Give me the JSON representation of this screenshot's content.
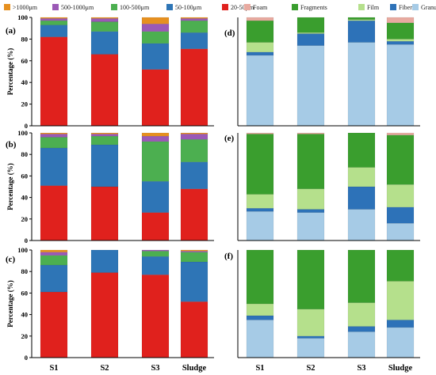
{
  "figure": {
    "left_legend": [
      {
        "label": ">1000μm",
        "color": "#e69020"
      },
      {
        "label": "500-1000μm",
        "color": "#9b59b6"
      },
      {
        "label": "100-500μm",
        "color": "#4caf50"
      },
      {
        "label": "50-100μm",
        "color": "#2e75b6"
      },
      {
        "label": "20-50μm",
        "color": "#e0211d"
      }
    ],
    "right_legend": [
      {
        "label": "Foam",
        "color": "#e8aaa0"
      },
      {
        "label": "Fragments",
        "color": "#3a9e2e"
      },
      {
        "label": "Film",
        "color": "#b5e08c"
      },
      {
        "label": "Fibers",
        "color": "#2d72b8"
      },
      {
        "label": "Granules",
        "color": "#a6cbe6"
      }
    ]
  },
  "chart_data": [
    {
      "type": "bar",
      "stacked": true,
      "panel_label": "(a)",
      "ylabel": "Percentage (%)",
      "ylim": [
        0,
        100
      ],
      "yticks": [
        0,
        20,
        40,
        60,
        80,
        100
      ],
      "categories": [
        "S1",
        "S2",
        "S3",
        "Sludge"
      ],
      "show_xticks": false,
      "series": [
        {
          "name": "20-50μm",
          "color": "#e0211d",
          "values": [
            82,
            66,
            52,
            71
          ]
        },
        {
          "name": "50-100μm",
          "color": "#2e75b6",
          "values": [
            11,
            21,
            24,
            15
          ]
        },
        {
          "name": "100-500μm",
          "color": "#4caf50",
          "values": [
            4,
            9,
            11,
            11
          ]
        },
        {
          "name": "500-1000μm",
          "color": "#9b59b6",
          "values": [
            2,
            3,
            7,
            2
          ]
        },
        {
          "name": ">1000μm",
          "color": "#e69020",
          "values": [
            1,
            1,
            6,
            1
          ]
        }
      ]
    },
    {
      "type": "bar",
      "stacked": true,
      "panel_label": "(b)",
      "ylabel": "Percentage (%)",
      "ylim": [
        0,
        100
      ],
      "yticks": [
        0,
        20,
        40,
        60,
        80,
        100
      ],
      "categories": [
        "S1",
        "S2",
        "S3",
        "Sludge"
      ],
      "show_xticks": false,
      "series": [
        {
          "name": "20-50μm",
          "color": "#e0211d",
          "values": [
            51,
            50,
            26,
            48
          ]
        },
        {
          "name": "50-100μm",
          "color": "#2e75b6",
          "values": [
            35,
            39,
            29,
            25
          ]
        },
        {
          "name": "100-500μm",
          "color": "#4caf50",
          "values": [
            10,
            8,
            37,
            21
          ]
        },
        {
          "name": "500-1000μm",
          "color": "#9b59b6",
          "values": [
            3,
            2,
            5,
            5
          ]
        },
        {
          "name": ">1000μm",
          "color": "#e69020",
          "values": [
            1,
            1,
            3,
            1
          ]
        }
      ]
    },
    {
      "type": "bar",
      "stacked": true,
      "panel_label": "(c)",
      "ylabel": "Percentage (%)",
      "ylim": [
        0,
        100
      ],
      "yticks": [
        0,
        20,
        40,
        60,
        80,
        100
      ],
      "categories": [
        "S1",
        "S2",
        "S3",
        "Sludge"
      ],
      "show_xticks": true,
      "series": [
        {
          "name": "20-50μm",
          "color": "#e0211d",
          "values": [
            61,
            79,
            77,
            52
          ]
        },
        {
          "name": "50-100μm",
          "color": "#2e75b6",
          "values": [
            25,
            21,
            17,
            37
          ]
        },
        {
          "name": "100-500μm",
          "color": "#4caf50",
          "values": [
            9,
            0,
            5,
            9
          ]
        },
        {
          "name": "500-1000μm",
          "color": "#9b59b6",
          "values": [
            3,
            0,
            1,
            1
          ]
        },
        {
          "name": ">1000μm",
          "color": "#e69020",
          "values": [
            2,
            0,
            0,
            1
          ]
        }
      ]
    },
    {
      "type": "bar",
      "stacked": true,
      "panel_label": "(d)",
      "ylim": [
        0,
        100
      ],
      "categories": [
        "S1",
        "S2",
        "S3",
        "Sludge"
      ],
      "show_xticks": false,
      "series": [
        {
          "name": "Granules",
          "color": "#a6cbe6",
          "values": [
            65,
            74,
            77,
            75
          ]
        },
        {
          "name": "Fibers",
          "color": "#2d72b8",
          "values": [
            3,
            11,
            20,
            3
          ]
        },
        {
          "name": "Film",
          "color": "#b5e08c",
          "values": [
            9,
            1,
            1,
            2
          ]
        },
        {
          "name": "Fragments",
          "color": "#3a9e2e",
          "values": [
            20,
            14,
            2,
            15
          ]
        },
        {
          "name": "Foam",
          "color": "#e8aaa0",
          "values": [
            3,
            0,
            0,
            5
          ]
        }
      ]
    },
    {
      "type": "bar",
      "stacked": true,
      "panel_label": "(e)",
      "ylim": [
        0,
        100
      ],
      "categories": [
        "S1",
        "S2",
        "S3",
        "Sludge"
      ],
      "show_xticks": false,
      "series": [
        {
          "name": "Granules",
          "color": "#a6cbe6",
          "values": [
            27,
            26,
            29,
            16
          ]
        },
        {
          "name": "Fibers",
          "color": "#2d72b8",
          "values": [
            3,
            3,
            21,
            15
          ]
        },
        {
          "name": "Film",
          "color": "#b5e08c",
          "values": [
            13,
            19,
            18,
            21
          ]
        },
        {
          "name": "Fragments",
          "color": "#3a9e2e",
          "values": [
            56,
            51,
            32,
            46
          ]
        },
        {
          "name": "Foam",
          "color": "#e8aaa0",
          "values": [
            1,
            1,
            0,
            2
          ]
        }
      ]
    },
    {
      "type": "bar",
      "stacked": true,
      "panel_label": "(f)",
      "ylim": [
        0,
        100
      ],
      "categories": [
        "S1",
        "S2",
        "S3",
        "Sludge"
      ],
      "show_xticks": true,
      "series": [
        {
          "name": "Granules",
          "color": "#a6cbe6",
          "values": [
            35,
            18,
            24,
            28
          ]
        },
        {
          "name": "Fibers",
          "color": "#2d72b8",
          "values": [
            4,
            2,
            5,
            7
          ]
        },
        {
          "name": "Film",
          "color": "#b5e08c",
          "values": [
            11,
            25,
            22,
            36
          ]
        },
        {
          "name": "Fragments",
          "color": "#3a9e2e",
          "values": [
            50,
            55,
            49,
            29
          ]
        },
        {
          "name": "Foam",
          "color": "#e8aaa0",
          "values": [
            0,
            0,
            0,
            0
          ]
        }
      ]
    }
  ]
}
